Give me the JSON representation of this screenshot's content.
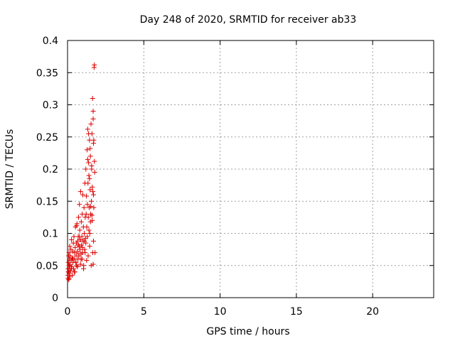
{
  "chart_data": {
    "type": "scatter",
    "title": "Day 248 of 2020, SRMTID for receiver ab33",
    "xlabel": "GPS time / hours",
    "ylabel": "SRMTID / TECUs",
    "xlim": [
      0,
      24
    ],
    "ylim": [
      0,
      0.4
    ],
    "xticks": [
      0,
      5,
      10,
      15,
      20
    ],
    "xtick_labels": [
      "0",
      "5",
      "10",
      "15",
      "20"
    ],
    "yticks": [
      0,
      0.05,
      0.1,
      0.15,
      0.2,
      0.25,
      0.3,
      0.35,
      0.4
    ],
    "ytick_labels": [
      "0",
      "0.05",
      "0.1",
      "0.15",
      "0.2",
      "0.25",
      "0.3",
      "0.35",
      "0.4"
    ],
    "grid": true,
    "marker": "+",
    "marker_color": "#dd0000",
    "series": [
      {
        "name": "ab33",
        "x": [
          0.02,
          0.03,
          0.04,
          0.05,
          0.06,
          0.07,
          0.08,
          0.09,
          0.1,
          0.11,
          0.12,
          0.13,
          0.14,
          0.15,
          0.16,
          0.18,
          0.2,
          0.22,
          0.24,
          0.26,
          0.28,
          0.3,
          0.32,
          0.34,
          0.36,
          0.38,
          0.4,
          0.42,
          0.44,
          0.46,
          0.48,
          0.5,
          0.52,
          0.54,
          0.56,
          0.58,
          0.6,
          0.62,
          0.64,
          0.66,
          0.68,
          0.7,
          0.72,
          0.74,
          0.76,
          0.78,
          0.8,
          0.82,
          0.84,
          0.86,
          0.88,
          0.9,
          0.92,
          0.94,
          0.96,
          0.98,
          1.0,
          1.02,
          1.04,
          1.06,
          1.08,
          1.1,
          1.12,
          1.14,
          1.16,
          1.18,
          1.2,
          1.22,
          1.24,
          1.26,
          1.28,
          1.3,
          1.32,
          1.34,
          1.36,
          1.38,
          1.4,
          1.42,
          1.44,
          1.46,
          1.48,
          1.5,
          1.52,
          1.54,
          1.56,
          1.58,
          1.6,
          1.62,
          1.64,
          1.66,
          1.68,
          1.7,
          1.72,
          1.74,
          1.76,
          1.78,
          1.8,
          0.05,
          0.1,
          0.15,
          0.25,
          0.35,
          0.45,
          0.55,
          0.65,
          0.75,
          0.85,
          0.95,
          1.05,
          1.15,
          1.25,
          1.35,
          1.45,
          1.55,
          1.65,
          0.6,
          0.7,
          0.78,
          0.88,
          0.98,
          1.1,
          1.2,
          1.3,
          1.4,
          1.5,
          1.6,
          1.7,
          1.32,
          1.38,
          1.44,
          1.48,
          1.52,
          1.58,
          1.62,
          1.68,
          1.72,
          1.76,
          1.68,
          1.7
        ],
        "y": [
          0.035,
          0.045,
          0.03,
          0.055,
          0.04,
          0.065,
          0.028,
          0.05,
          0.07,
          0.038,
          0.06,
          0.045,
          0.08,
          0.033,
          0.052,
          0.065,
          0.042,
          0.075,
          0.058,
          0.09,
          0.048,
          0.062,
          0.035,
          0.072,
          0.055,
          0.085,
          0.045,
          0.095,
          0.06,
          0.07,
          0.04,
          0.078,
          0.11,
          0.055,
          0.065,
          0.085,
          0.05,
          0.115,
          0.072,
          0.088,
          0.06,
          0.095,
          0.125,
          0.068,
          0.08,
          0.145,
          0.105,
          0.075,
          0.09,
          0.165,
          0.06,
          0.118,
          0.082,
          0.095,
          0.13,
          0.07,
          0.16,
          0.088,
          0.11,
          0.05,
          0.14,
          0.1,
          0.075,
          0.178,
          0.125,
          0.092,
          0.2,
          0.13,
          0.158,
          0.11,
          0.23,
          0.145,
          0.215,
          0.178,
          0.125,
          0.255,
          0.19,
          0.14,
          0.245,
          0.1,
          0.168,
          0.22,
          0.13,
          0.27,
          0.15,
          0.205,
          0.255,
          0.12,
          0.31,
          0.165,
          0.29,
          0.24,
          0.14,
          0.358,
          0.362,
          0.195,
          0.07,
          0.04,
          0.03,
          0.05,
          0.045,
          0.06,
          0.04,
          0.055,
          0.048,
          0.065,
          0.052,
          0.06,
          0.045,
          0.07,
          0.058,
          0.065,
          0.08,
          0.05,
          0.07,
          0.112,
          0.082,
          0.095,
          0.068,
          0.078,
          0.088,
          0.085,
          0.095,
          0.105,
          0.118,
          0.128,
          0.16,
          0.262,
          0.21,
          0.185,
          0.232,
          0.142,
          0.2,
          0.172,
          0.278,
          0.245,
          0.212,
          0.052,
          0.088
        ]
      }
    ]
  }
}
